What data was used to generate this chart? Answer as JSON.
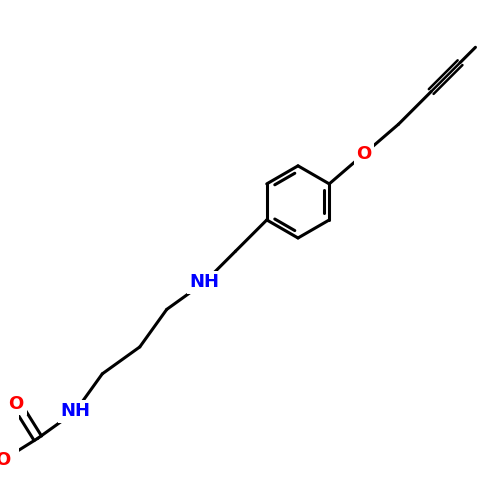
{
  "background_color": "#ffffff",
  "bond_color": "#000000",
  "N_color": "#0000ff",
  "O_color": "#ff0000",
  "bond_width": 2.2,
  "font_size": 13,
  "figsize": [
    5.0,
    5.0
  ],
  "dpi": 100,
  "xlim": [
    0,
    10
  ],
  "ylim": [
    0,
    10
  ]
}
